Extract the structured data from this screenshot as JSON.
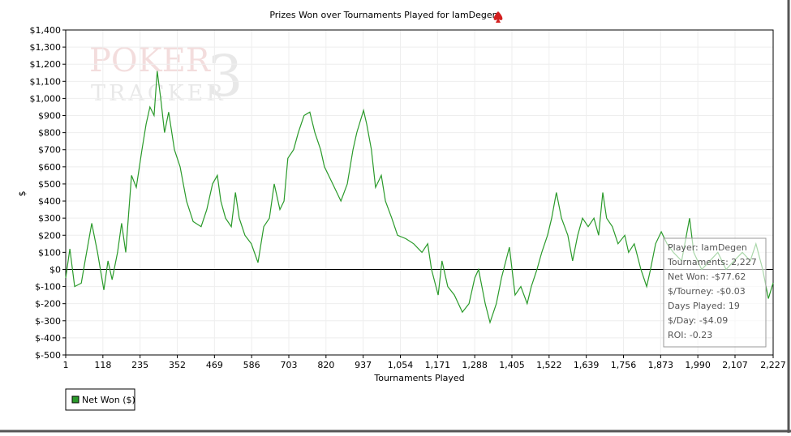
{
  "chart_data": {
    "type": "line",
    "title": "Prizes Won over Tournaments Played for IamDegen",
    "xlabel": "Tournaments Played",
    "ylabel": "$",
    "watermark": [
      "POKER",
      "TRACKER",
      "3"
    ],
    "grid": true,
    "legend": "bottom-left",
    "xlim": [
      1,
      2227
    ],
    "ylim": [
      -500,
      1400
    ],
    "xticks": [
      1,
      118,
      235,
      352,
      469,
      586,
      703,
      820,
      937,
      {
        "value": 1054,
        "label": "1,054"
      },
      {
        "value": 1171,
        "label": "1,171"
      },
      {
        "value": 1288,
        "label": "1,288"
      },
      {
        "value": 1405,
        "label": "1,405"
      },
      {
        "value": 1522,
        "label": "1,522"
      },
      {
        "value": 1639,
        "label": "1,639"
      },
      {
        "value": 1756,
        "label": "1,756"
      },
      {
        "value": 1873,
        "label": "1,873"
      },
      {
        "value": 1990,
        "label": "1,990"
      },
      {
        "value": 2107,
        "label": "2,107"
      },
      {
        "value": 2227,
        "label": "2,227"
      }
    ],
    "yticks": [
      {
        "value": -500,
        "label": "$-500"
      },
      {
        "value": -400,
        "label": "$-400"
      },
      {
        "value": -300,
        "label": "$-300"
      },
      {
        "value": -200,
        "label": "$-200"
      },
      {
        "value": -100,
        "label": "$-100"
      },
      {
        "value": 0,
        "label": "$0"
      },
      {
        "value": 100,
        "label": "$100"
      },
      {
        "value": 200,
        "label": "$200"
      },
      {
        "value": 300,
        "label": "$300"
      },
      {
        "value": 400,
        "label": "$400"
      },
      {
        "value": 500,
        "label": "$500"
      },
      {
        "value": 600,
        "label": "$600"
      },
      {
        "value": 700,
        "label": "$700"
      },
      {
        "value": 800,
        "label": "$800"
      },
      {
        "value": 900,
        "label": "$900"
      },
      {
        "value": 1000,
        "label": "$1,000"
      },
      {
        "value": 1100,
        "label": "$1,100"
      },
      {
        "value": 1200,
        "label": "$1,200"
      },
      {
        "value": 1300,
        "label": "$1,300"
      },
      {
        "value": 1400,
        "label": "$1,400"
      }
    ],
    "x": [
      1,
      14,
      29,
      50,
      62,
      83,
      101,
      121,
      134,
      147,
      164,
      177,
      190,
      208,
      223,
      241,
      254,
      266,
      279,
      289,
      300,
      312,
      325,
      343,
      361,
      381,
      402,
      427,
      445,
      463,
      478,
      489,
      504,
      522,
      535,
      547,
      565,
      585,
      606,
      624,
      642,
      657,
      675,
      688,
      700,
      718,
      733,
      751,
      769,
      785,
      803,
      815,
      841,
      867,
      887,
      905,
      917,
      938,
      948,
      963,
      976,
      994,
      1007,
      1027,
      1045,
      1071,
      1096,
      1122,
      1140,
      1152,
      1173,
      1185,
      1203,
      1224,
      1249,
      1270,
      1288,
      1300,
      1321,
      1336,
      1356,
      1372,
      1397,
      1415,
      1433,
      1453,
      1466,
      1484,
      1499,
      1517,
      1530,
      1545,
      1561,
      1581,
      1596,
      1612,
      1627,
      1645,
      1663,
      1678,
      1691,
      1703,
      1721,
      1739,
      1760,
      1772,
      1790,
      1811,
      1829,
      1841,
      1857,
      1875,
      1893,
      1913,
      1939,
      1964,
      1977,
      2002,
      2028,
      2053,
      2079,
      2104,
      2130,
      2155,
      2173,
      2194,
      2212,
      2227
    ],
    "series": [
      {
        "name": "Net Won ($)",
        "color": "#2a9a2a",
        "values": [
          -50,
          120,
          -100,
          -80,
          50,
          270,
          100,
          -120,
          50,
          -60,
          100,
          270,
          100,
          550,
          480,
          700,
          850,
          950,
          900,
          1160,
          1000,
          800,
          920,
          700,
          600,
          400,
          280,
          250,
          350,
          500,
          550,
          400,
          300,
          250,
          450,
          300,
          200,
          150,
          40,
          250,
          300,
          500,
          350,
          400,
          650,
          700,
          800,
          900,
          920,
          800,
          700,
          600,
          500,
          400,
          500,
          700,
          800,
          930,
          850,
          700,
          480,
          550,
          400,
          300,
          200,
          180,
          150,
          100,
          150,
          0,
          -150,
          50,
          -100,
          -150,
          -250,
          -200,
          -50,
          0,
          -200,
          -310,
          -200,
          -50,
          130,
          -150,
          -100,
          -200,
          -100,
          0,
          100,
          200,
          300,
          450,
          300,
          200,
          50,
          200,
          300,
          250,
          300,
          200,
          450,
          300,
          250,
          150,
          200,
          100,
          150,
          0,
          -100,
          0,
          150,
          220,
          150,
          100,
          50,
          300,
          100,
          0,
          50,
          100,
          0,
          50,
          100,
          50,
          150,
          0,
          -170,
          -77.62
        ]
      }
    ],
    "tooltip": [
      "Player: IamDegen",
      "Tournaments: 2,227",
      "Net Won: -$77.62",
      "$/Tourney: -$0.03",
      "Days Played: 19",
      "$/Day: -$4.09",
      "ROI: -0.23"
    ]
  }
}
